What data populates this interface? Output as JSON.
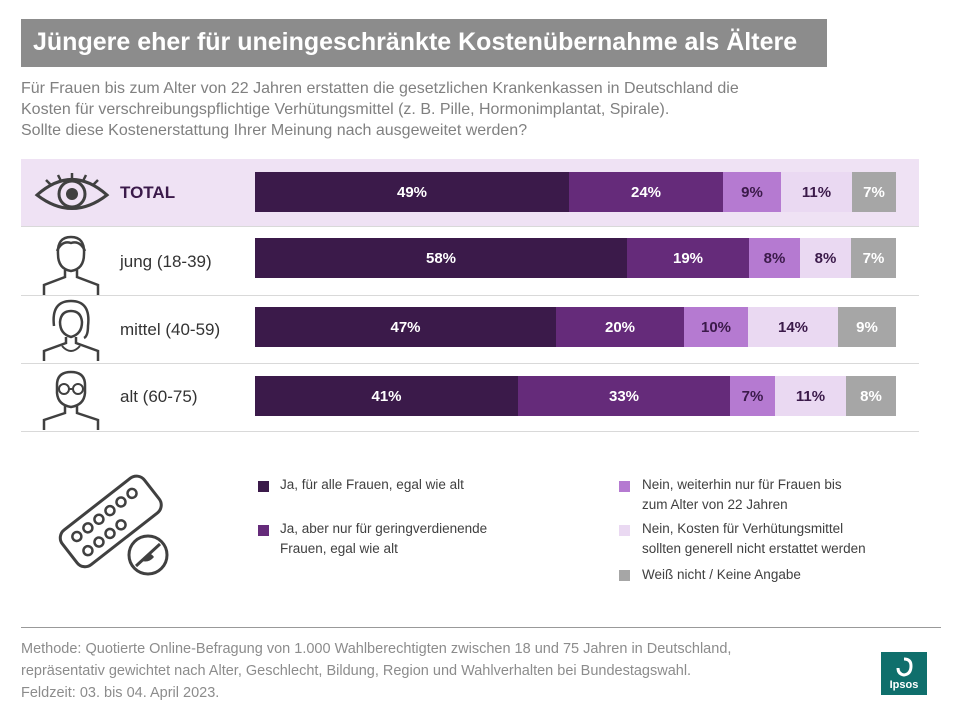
{
  "title": "Jüngere eher für uneingeschränkte Kostenübernahme als Ältere",
  "subtitle": [
    "Für Frauen bis zum Alter von 22 Jahren erstatten die gesetzlichen Krankenkassen in Deutschland die",
    "Kosten für verschreibungspflichtige Verhütungsmittel (z. B. Pille, Hormonimplantat, Spirale).",
    "Sollte diese Kostenerstattung Ihrer Meinung nach ausgeweitet werden?"
  ],
  "colors": {
    "ja_alle": "#3b1a4a",
    "ja_gering": "#652b7a",
    "nein_22": "#b57ad1",
    "nein_generell": "#ead9f2",
    "weiss_nicht": "#a6a6a6",
    "total_highlight": "#efe2f4",
    "logo": "#0f6f6c"
  },
  "chart_data": {
    "type": "bar",
    "orientation": "horizontal",
    "stacked": true,
    "title": "Jüngere eher für uneingeschränkte Kostenübernahme als Ältere",
    "categories": [
      "TOTAL",
      "jung (18-39)",
      "mittel (40-59)",
      "alt (60-75)"
    ],
    "category_icons": [
      "eye-icon",
      "young-person-icon",
      "middle-aged-woman-icon",
      "elderly-man-icon"
    ],
    "xlim": [
      0,
      100
    ],
    "unit": "%",
    "series": [
      {
        "name": "Ja, für alle Frauen, egal wie alt",
        "color_key": "ja_alle",
        "values": [
          49,
          58,
          47,
          41
        ]
      },
      {
        "name": "Ja, aber nur für geringverdienende Frauen, egal wie alt",
        "color_key": "ja_gering",
        "values": [
          24,
          19,
          20,
          33
        ]
      },
      {
        "name": "Nein, weiterhin nur für Frauen bis zum Alter von 22 Jahren",
        "color_key": "nein_22",
        "values": [
          9,
          8,
          10,
          7
        ]
      },
      {
        "name": "Nein, Kosten für Verhütungsmittel sollten generell nicht erstattet werden",
        "color_key": "nein_generell",
        "values": [
          11,
          8,
          14,
          11
        ]
      },
      {
        "name": "Weiß nicht / Keine Angabe",
        "color_key": "weiss_nicht",
        "values": [
          7,
          7,
          9,
          8
        ]
      }
    ]
  },
  "legend": [
    {
      "lines": [
        "Ja, für alle Frauen, egal wie alt"
      ]
    },
    {
      "lines": [
        "Ja, aber nur für geringverdienende",
        "Frauen, egal wie alt"
      ]
    },
    {
      "lines": [
        "Nein, weiterhin nur für Frauen bis",
        "zum Alter von 22 Jahren"
      ]
    },
    {
      "lines": [
        "Nein, Kosten für Verhütungsmittel",
        "sollten generell nicht erstattet werden"
      ]
    },
    {
      "lines": [
        "Weiß nicht / Keine Angabe"
      ]
    }
  ],
  "footer": [
    "Methode: Quotierte Online-Befragung  von 1.000 Wahlberechtigten  zwischen 18 und 75 Jahren in Deutschland,",
    "repräsentativ  gewichtet  nach Alter, Geschlecht,  Bildung,  Region  und Wahlverhalten  bei Bundestagswahl.",
    "Feldzeit: 03. bis 04. April 2023."
  ],
  "logo": {
    "text": "Ipsos",
    "name": "ipsos-logo"
  }
}
